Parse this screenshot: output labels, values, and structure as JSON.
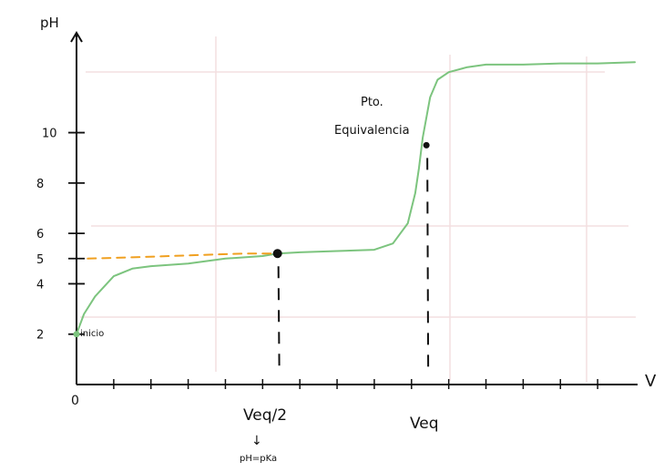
{
  "chart_data": {
    "type": "line",
    "title": "",
    "ylabel": "pH",
    "xlabel": "V",
    "x_origin_label": "0",
    "y_ticks": [
      {
        "value": 2,
        "label": "2"
      },
      {
        "value": 4,
        "label": "4"
      },
      {
        "value": 5,
        "label": "5"
      },
      {
        "value": 6,
        "label": "6"
      },
      {
        "value": 8,
        "label": "8"
      },
      {
        "value": 10,
        "label": "10"
      }
    ],
    "xlim": [
      0,
      15
    ],
    "ylim": [
      0,
      14
    ],
    "grid": true,
    "series": [
      {
        "color": "#7cc47e",
        "style": "solid",
        "x": [
          0,
          0.2,
          0.5,
          1.0,
          1.5,
          2.0,
          3.0,
          4.0,
          5.0,
          5.4,
          6.0,
          7.0,
          8.0,
          8.5,
          8.9,
          9.1,
          9.2,
          9.3,
          9.5,
          9.7,
          10.0,
          10.5,
          11.0,
          12.0,
          13.0,
          14.0,
          15.0
        ],
        "y": [
          2.0,
          2.8,
          3.5,
          4.3,
          4.6,
          4.7,
          4.8,
          5.0,
          5.1,
          5.2,
          5.25,
          5.3,
          5.35,
          5.6,
          6.4,
          7.6,
          8.6,
          9.8,
          11.4,
          12.1,
          12.4,
          12.6,
          12.7,
          12.7,
          12.75,
          12.75,
          12.8
        ]
      },
      {
        "color": "#f0a020",
        "style": "dashed",
        "x": [
          0.3,
          1.5,
          2.5,
          3.5,
          4.5,
          5.4
        ],
        "y": [
          5.0,
          5.05,
          5.1,
          5.15,
          5.2,
          5.2
        ]
      }
    ],
    "points": [
      {
        "x": 0,
        "y": 2.0,
        "color": "#7cc47e",
        "label": "inicio"
      },
      {
        "x": 5.4,
        "y": 5.2,
        "color": "#111111",
        "label": ""
      },
      {
        "x": 9.4,
        "y": 9.5,
        "color": "#111111",
        "label": "Pto.\nEquivalencia"
      }
    ],
    "annotations": {
      "veq_half": "Veq/2",
      "arrow_glyph": "↓",
      "pka_note": "pH=pKa",
      "veq": "Veq",
      "pto": "Pto.",
      "equivalencia": "Equivalencia",
      "inicio": "inicio"
    }
  }
}
